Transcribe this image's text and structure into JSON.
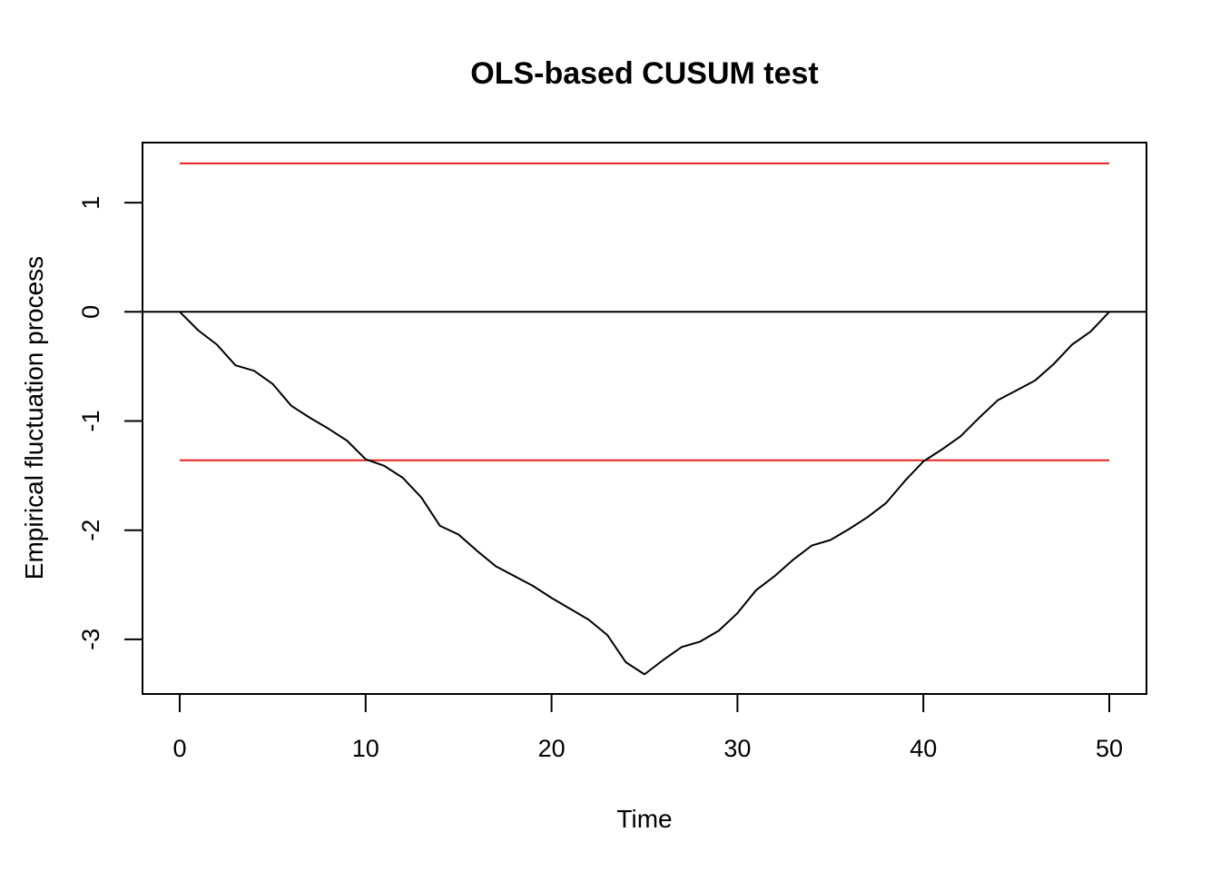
{
  "chart_data": {
    "type": "line",
    "title": "OLS-based CUSUM test",
    "xlabel": "Time",
    "ylabel": "Empirical fluctuation process",
    "xlim": [
      -2,
      52
    ],
    "ylim": [
      -3.5,
      1.55
    ],
    "x_ticks": [
      0,
      10,
      20,
      30,
      40,
      50
    ],
    "x_tick_labels": [
      "0",
      "10",
      "20",
      "30",
      "40",
      "50"
    ],
    "y_ticks": [
      -3,
      -2,
      -1,
      0,
      1
    ],
    "y_tick_labels": [
      "-3",
      "-2",
      "-1",
      "0",
      "1"
    ],
    "x": [
      0,
      1,
      2,
      3,
      4,
      5,
      6,
      7,
      8,
      9,
      10,
      11,
      12,
      13,
      14,
      15,
      16,
      17,
      18,
      19,
      20,
      21,
      22,
      23,
      24,
      25,
      26,
      27,
      28,
      29,
      30,
      31,
      32,
      33,
      34,
      35,
      36,
      37,
      38,
      39,
      40,
      41,
      42,
      43,
      44,
      45,
      46,
      47,
      48,
      49,
      50
    ],
    "series": [
      {
        "values": [
          0,
          -0.17,
          -0.3,
          -0.49,
          -0.54,
          -0.66,
          -0.86,
          -0.97,
          -1.07,
          -1.18,
          -1.35,
          -1.41,
          -1.52,
          -1.7,
          -1.96,
          -2.04,
          -2.19,
          -2.33,
          -2.42,
          -2.51,
          -2.62,
          -2.72,
          -2.82,
          -2.96,
          -3.21,
          -3.32,
          -3.19,
          -3.07,
          -3.02,
          -2.92,
          -2.76,
          -2.55,
          -2.42,
          -2.27,
          -2.14,
          -2.09,
          -1.99,
          -1.88,
          -1.75,
          -1.55,
          -1.37,
          -1.26,
          -1.14,
          -0.97,
          -0.81,
          -0.72,
          -0.63,
          -0.48,
          -0.3,
          -0.18,
          0
        ],
        "color": "#000000"
      }
    ],
    "boundaries": {
      "upper": 1.36,
      "lower": -1.36,
      "x_range": [
        0,
        50
      ],
      "color": "#e3201b"
    },
    "reference_line": {
      "y": 0,
      "color": "#000000"
    },
    "grid": false,
    "legend": "none"
  }
}
